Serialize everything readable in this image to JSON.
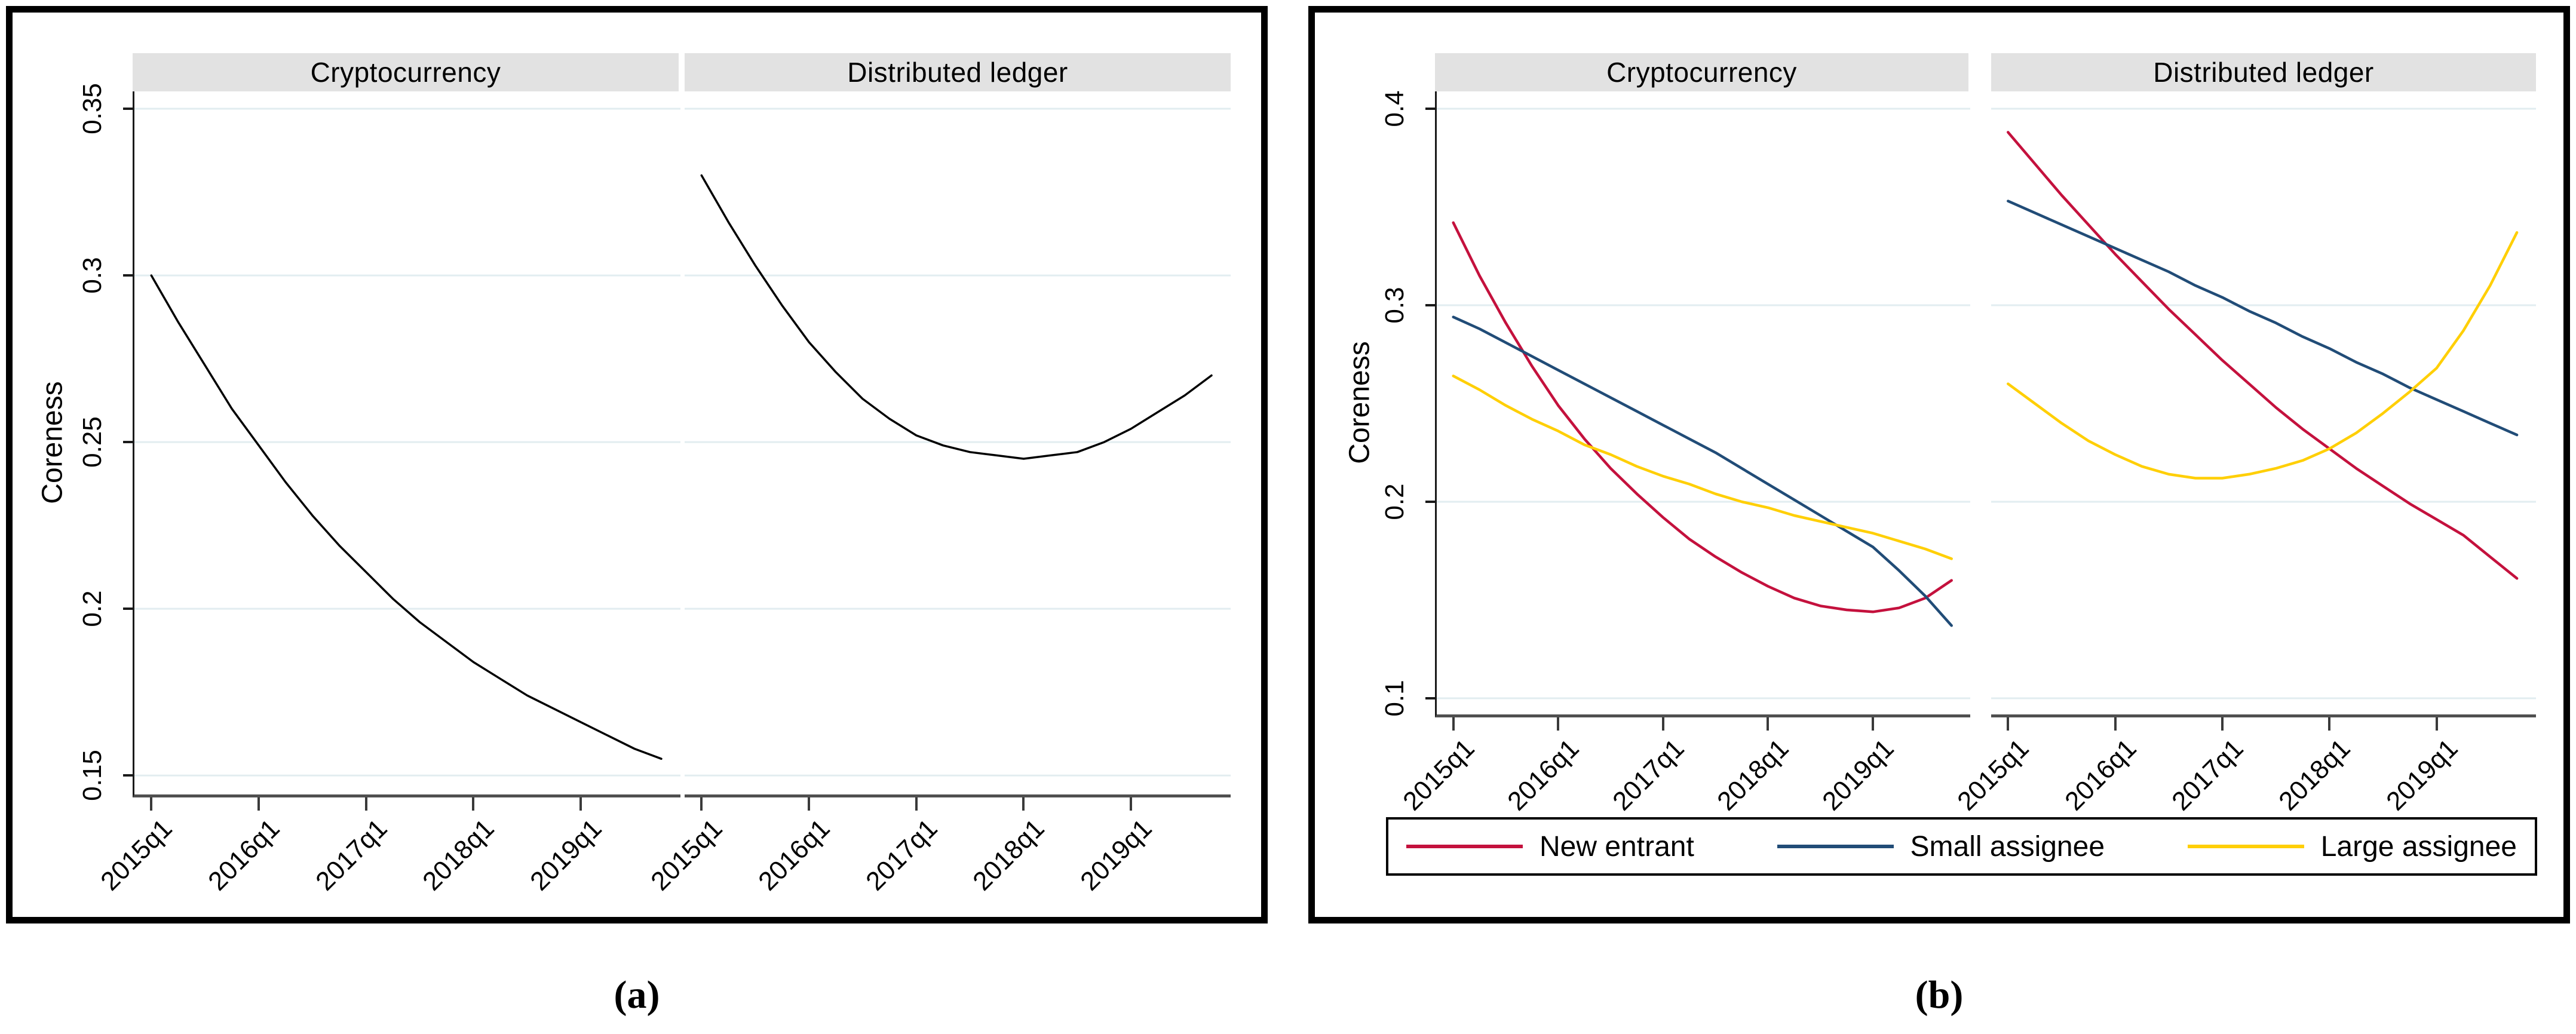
{
  "figure": {
    "ylabel": "Coreness",
    "captions": {
      "a": "(a)",
      "b": "(b)"
    },
    "colors": {
      "new_entrant": "#c4113d",
      "small_assignee": "#214c77",
      "large_assignee": "#ffcf05",
      "single_series": "#000000",
      "gridline": "#e2edf0",
      "header_band": "#e2e2e2",
      "y_axis": "#1a1a1a",
      "x_axis": "#4f4f4f",
      "tick": "#3a3a3a",
      "panel_border": "#000000"
    },
    "legend": {
      "items": [
        {
          "label": "New entrant",
          "color": "#c4113d"
        },
        {
          "label": "Small assignee",
          "color": "#214c77"
        },
        {
          "label": "Large assignee",
          "color": "#ffcf05"
        }
      ]
    }
  },
  "chart_data": [
    {
      "id": "a",
      "type": "line",
      "ylabel": "Coreness",
      "x": [
        "2015q1",
        "2015q2",
        "2015q3",
        "2015q4",
        "2016q1",
        "2016q2",
        "2016q3",
        "2016q4",
        "2017q1",
        "2017q2",
        "2017q3",
        "2017q4",
        "2018q1",
        "2018q2",
        "2018q3",
        "2018q4",
        "2019q1",
        "2019q2",
        "2019q3",
        "2019q4"
      ],
      "xtick_labels": [
        "2015q1",
        "2016q1",
        "2017q1",
        "2018q1",
        "2019q1"
      ],
      "xtick_indices": [
        0,
        4,
        8,
        12,
        16
      ],
      "ylim": [
        0.1443,
        0.3552
      ],
      "ytick_values": [
        0.15,
        0.2,
        0.25,
        0.3,
        0.35
      ],
      "ytick_labels": [
        "0.15",
        "0.2",
        "0.25",
        "0.3",
        "0.35"
      ],
      "grid": true,
      "legend_position": "none",
      "panels": [
        {
          "title": "Cryptocurrency",
          "series": [
            {
              "name": "Coreness",
              "color": "#000000",
              "values": [
                0.3,
                0.286,
                0.273,
                0.26,
                0.249,
                0.238,
                0.228,
                0.219,
                0.211,
                0.203,
                0.196,
                0.19,
                0.184,
                0.179,
                0.174,
                0.17,
                0.166,
                0.162,
                0.158,
                0.155
              ]
            }
          ]
        },
        {
          "title": "Distributed ledger",
          "series": [
            {
              "name": "Coreness",
              "color": "#000000",
              "values": [
                0.33,
                0.316,
                0.303,
                0.291,
                0.28,
                0.271,
                0.263,
                0.257,
                0.252,
                0.249,
                0.247,
                0.246,
                0.245,
                0.246,
                0.247,
                0.25,
                0.254,
                0.259,
                0.264,
                0.27
              ]
            }
          ]
        }
      ]
    },
    {
      "id": "b",
      "type": "line",
      "ylabel": "Coreness",
      "x": [
        "2015q1",
        "2015q2",
        "2015q3",
        "2015q4",
        "2016q1",
        "2016q2",
        "2016q3",
        "2016q4",
        "2017q1",
        "2017q2",
        "2017q3",
        "2017q4",
        "2018q1",
        "2018q2",
        "2018q3",
        "2018q4",
        "2019q1",
        "2019q2",
        "2019q3",
        "2019q4"
      ],
      "xtick_labels": [
        "2015q1",
        "2016q1",
        "2017q1",
        "2018q1",
        "2019q1"
      ],
      "xtick_indices": [
        0,
        4,
        8,
        12,
        16
      ],
      "ylim": [
        0.0918,
        0.4088
      ],
      "ytick_values": [
        0.1,
        0.2,
        0.3,
        0.4
      ],
      "ytick_labels": [
        "0.1",
        "0.2",
        "0.3",
        "0.4"
      ],
      "grid": true,
      "legend_position": "bottom",
      "panels": [
        {
          "title": "Cryptocurrency",
          "series": [
            {
              "name": "New entrant",
              "color": "#c4113d",
              "values": [
                0.342,
                0.315,
                0.291,
                0.269,
                0.249,
                0.232,
                0.217,
                0.204,
                0.192,
                0.181,
                0.172,
                0.164,
                0.157,
                0.151,
                0.147,
                0.145,
                0.144,
                0.146,
                0.151,
                0.16
              ]
            },
            {
              "name": "Small assignee",
              "color": "#214c77",
              "values": [
                0.294,
                0.288,
                0.281,
                0.274,
                0.267,
                0.26,
                0.253,
                0.246,
                0.239,
                0.232,
                0.225,
                0.217,
                0.209,
                0.201,
                0.193,
                0.185,
                0.177,
                0.165,
                0.152,
                0.137
              ]
            },
            {
              "name": "Large assignee",
              "color": "#ffcf05",
              "values": [
                0.264,
                0.257,
                0.249,
                0.242,
                0.236,
                0.229,
                0.224,
                0.218,
                0.213,
                0.209,
                0.204,
                0.2,
                0.197,
                0.193,
                0.19,
                0.187,
                0.184,
                0.18,
                0.176,
                0.171
              ]
            }
          ]
        },
        {
          "title": "Distributed ledger",
          "series": [
            {
              "name": "New entrant",
              "color": "#c4113d",
              "values": [
                0.388,
                0.372,
                0.356,
                0.341,
                0.326,
                0.312,
                0.298,
                0.285,
                0.272,
                0.26,
                0.248,
                0.237,
                0.227,
                0.217,
                0.208,
                0.199,
                0.191,
                0.183,
                0.172,
                0.161
              ]
            },
            {
              "name": "Small assignee",
              "color": "#214c77",
              "values": [
                0.353,
                0.347,
                0.341,
                0.335,
                0.329,
                0.323,
                0.317,
                0.31,
                0.304,
                0.297,
                0.291,
                0.284,
                0.278,
                0.271,
                0.265,
                0.258,
                0.252,
                0.246,
                0.24,
                0.234
              ]
            },
            {
              "name": "Large assignee",
              "color": "#ffcf05",
              "values": [
                0.26,
                0.25,
                0.24,
                0.231,
                0.224,
                0.218,
                0.214,
                0.212,
                0.212,
                0.214,
                0.217,
                0.221,
                0.227,
                0.235,
                0.245,
                0.256,
                0.268,
                0.287,
                0.31,
                0.337
              ]
            }
          ]
        }
      ]
    }
  ]
}
